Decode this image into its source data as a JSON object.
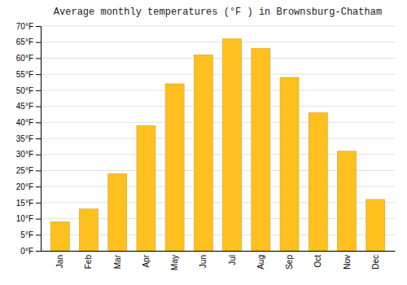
{
  "chart_data": {
    "type": "bar",
    "title": "Average monthly temperatures (°F ) in Brownsburg-Chatham",
    "categories": [
      "Jan",
      "Feb",
      "Mar",
      "Apr",
      "May",
      "Jun",
      "Jul",
      "Aug",
      "Sep",
      "Oct",
      "Nov",
      "Dec"
    ],
    "values": [
      9,
      13,
      24,
      39,
      52,
      61,
      66,
      63,
      54,
      43,
      31,
      16
    ],
    "color": "#FFC020",
    "ylim": [
      0,
      70
    ],
    "yticks": [
      {
        "value": 0,
        "label": "0°F"
      },
      {
        "value": 5,
        "label": "5°F"
      },
      {
        "value": 10,
        "label": "10°F"
      },
      {
        "value": 15,
        "label": "15°F"
      },
      {
        "value": 20,
        "label": "20°F"
      },
      {
        "value": 25,
        "label": "25°F"
      },
      {
        "value": 30,
        "label": "30°F"
      },
      {
        "value": 35,
        "label": "35°F"
      },
      {
        "value": 40,
        "label": "40°F"
      },
      {
        "value": 45,
        "label": "45°F"
      },
      {
        "value": 50,
        "label": "50°F"
      },
      {
        "value": 55,
        "label": "55°F"
      },
      {
        "value": 60,
        "label": "60°F"
      },
      {
        "value": 65,
        "label": "65°F"
      },
      {
        "value": 70,
        "label": "70°F"
      }
    ],
    "grid": true
  }
}
